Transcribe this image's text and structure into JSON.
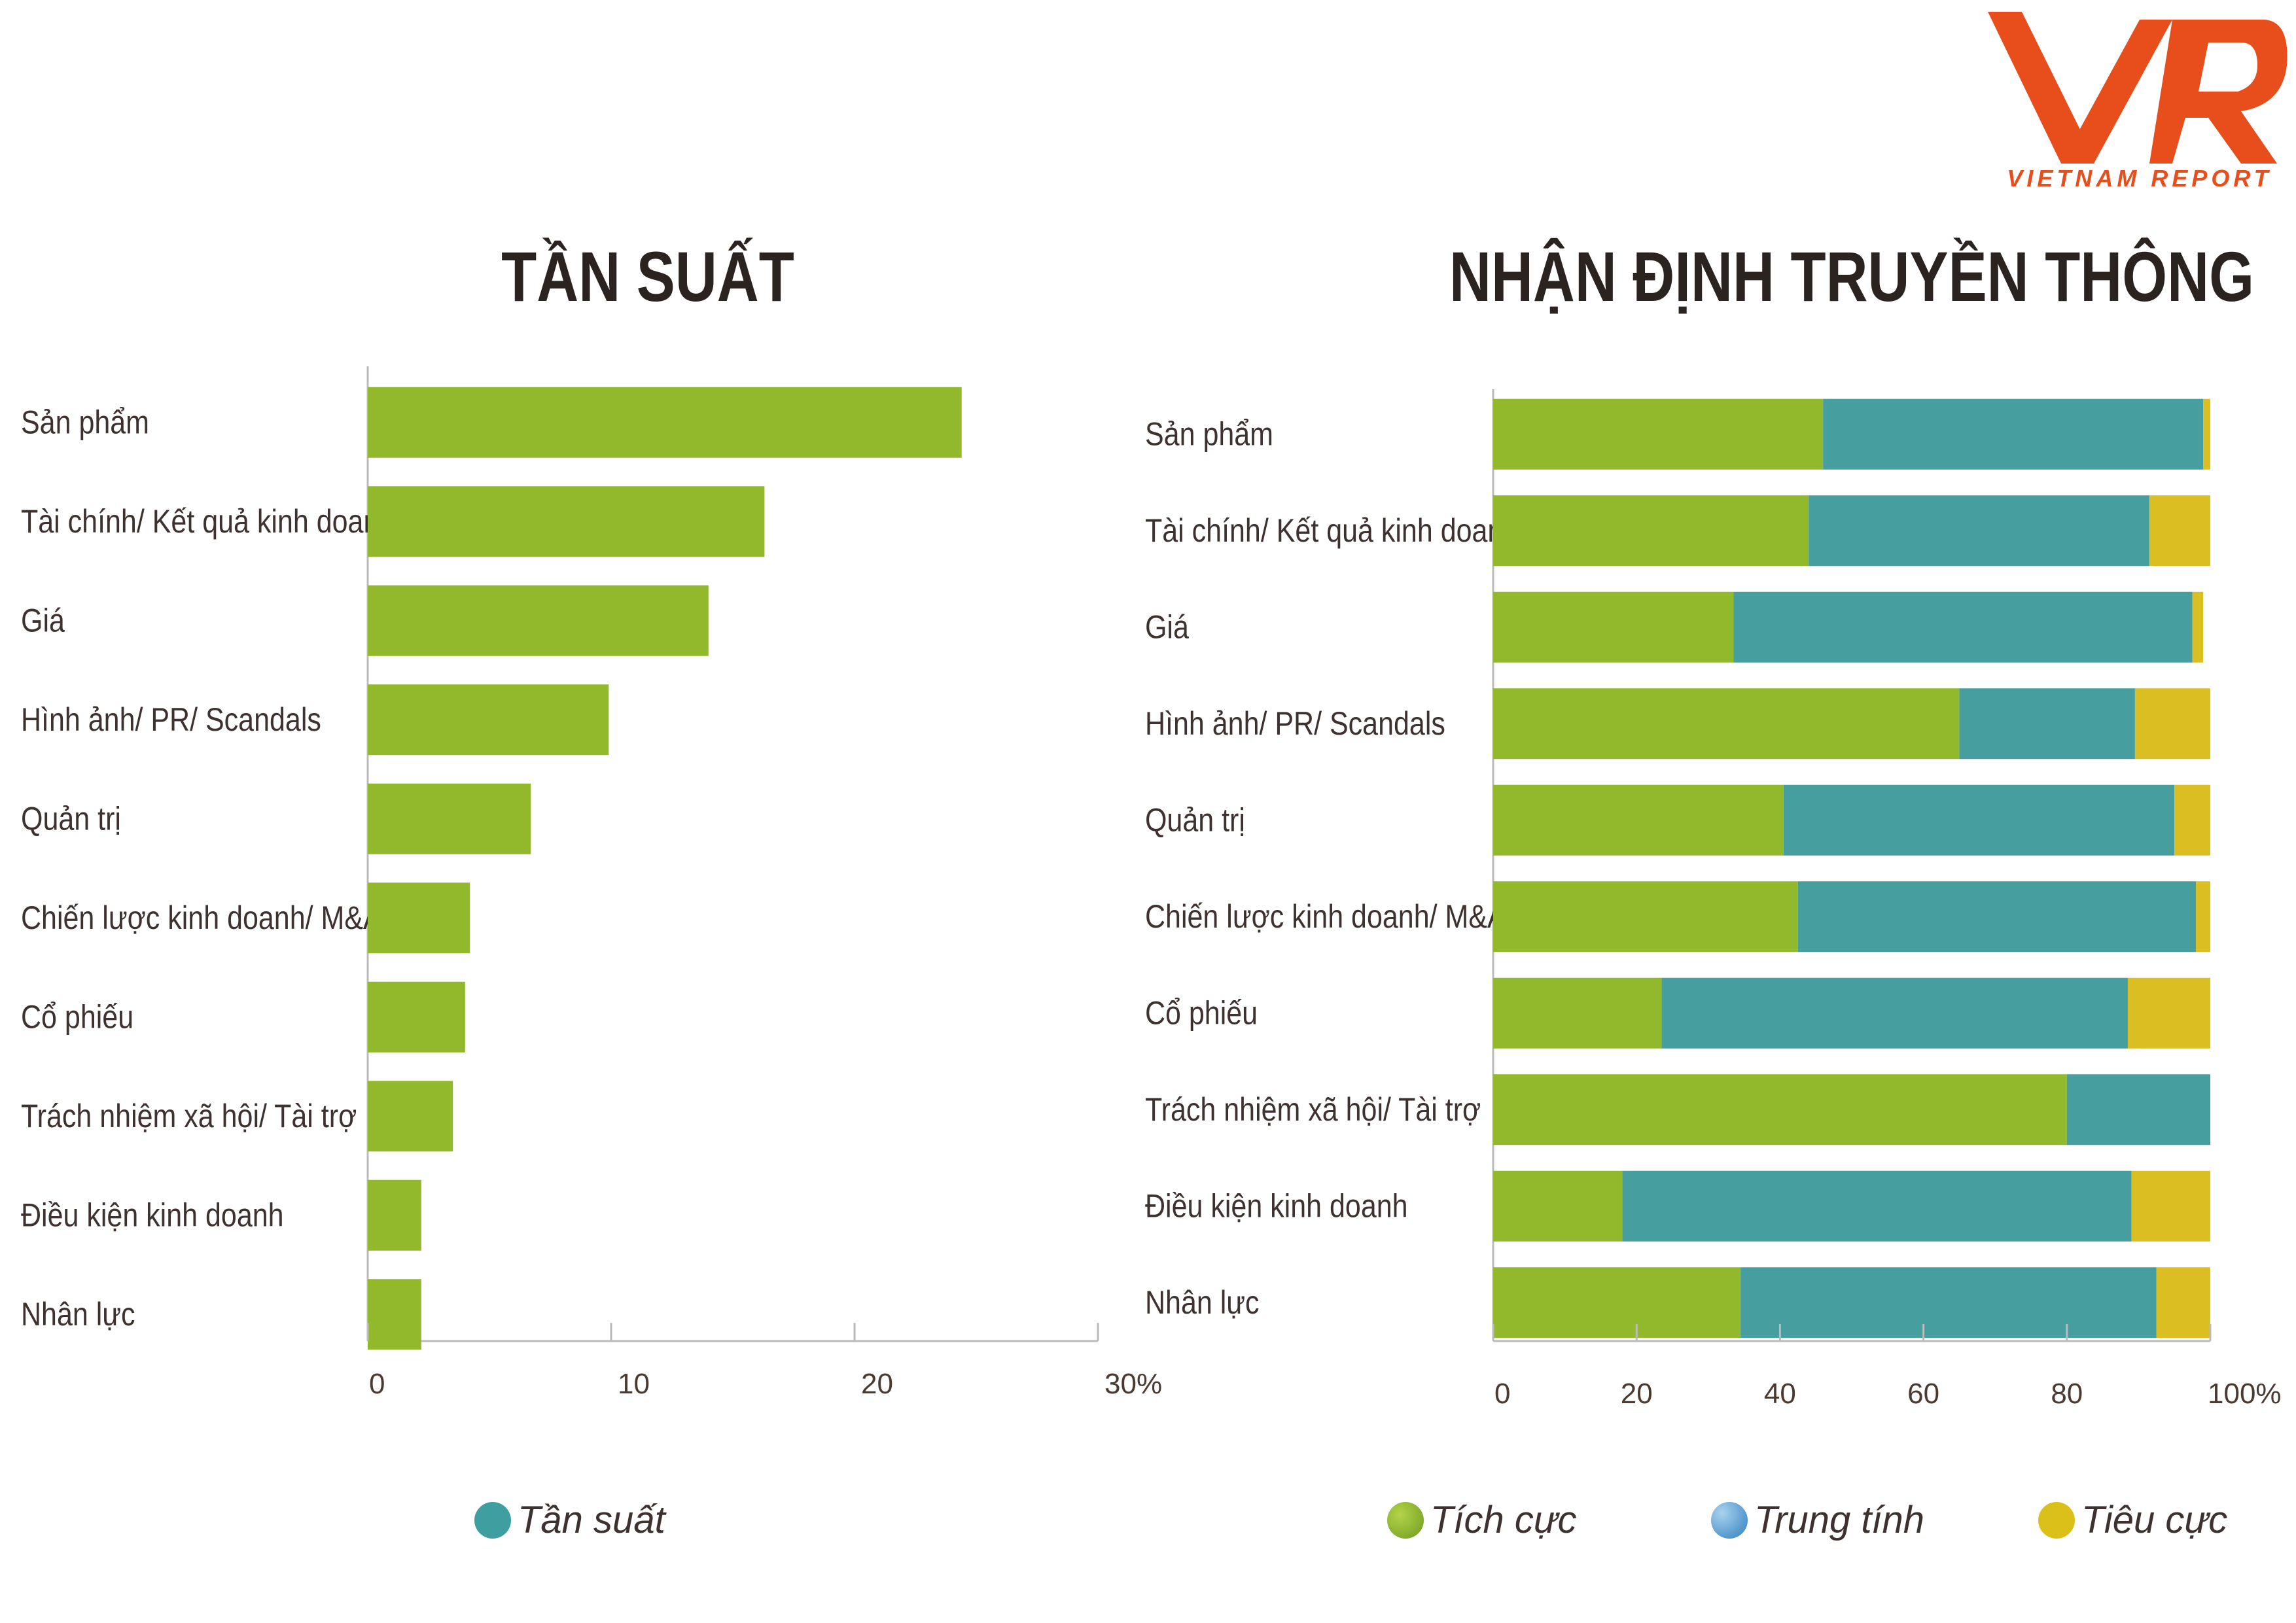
{
  "logo": {
    "wordmark": "VNR",
    "text": "VIETNAM REPORT",
    "color": "#e84e1b"
  },
  "titles": {
    "left": "TẦN SUẤT",
    "right": "NHẬN ĐỊNH TRUYỀN THÔNG"
  },
  "colors": {
    "positive": "#92b82b",
    "neutral": "#479e9f",
    "negative": "#dbbe22",
    "frequency": "#92b82b",
    "legend_frequency": "#3f9ea0"
  },
  "legend": {
    "left": [
      {
        "label": "Tần suất",
        "icon": "teal-circle"
      }
    ],
    "right": [
      {
        "label": "Tích cực",
        "icon": "green-circle"
      },
      {
        "label": "Trung tính",
        "icon": "blue-circle"
      },
      {
        "label": "Tiêu cực",
        "icon": "yellow-circle"
      }
    ]
  },
  "chart_data": [
    {
      "type": "bar",
      "orientation": "horizontal",
      "title": "TẦN SUẤT",
      "categories": [
        "Sản phẩm",
        "Tài chính/ Kết quả kinh doanh",
        "Giá",
        "Hình ảnh/ PR/ Scandals",
        "Quản trị",
        "Chiến lược kinh doanh/ M&A",
        "Cổ phiếu",
        "Trách nhiệm xã hội/ Tài trợ",
        "Điều kiện kinh doanh",
        "Nhân lực"
      ],
      "series": [
        {
          "name": "Tần suất",
          "values": [
            24.4,
            16.3,
            14.0,
            9.9,
            6.7,
            4.2,
            4.0,
            3.5,
            2.2,
            2.2
          ]
        }
      ],
      "xlim": [
        0,
        30
      ],
      "xticks": [
        "0",
        "10",
        "20",
        "30%"
      ],
      "grid": false,
      "legend_position": "bottom"
    },
    {
      "type": "bar",
      "orientation": "horizontal",
      "stacked": true,
      "title": "NHẬN ĐỊNH TRUYỀN THÔNG",
      "categories": [
        "Sản phẩm",
        "Tài chính/ Kết quả kinh doanh",
        "Giá",
        "Hình ảnh/ PR/ Scandals",
        "Quản trị",
        "Chiến lược kinh doanh/ M&A",
        "Cổ phiếu",
        "Trách nhiệm xã hội/ Tài trợ",
        "Điều kiện kinh doanh",
        "Nhân lực"
      ],
      "series": [
        {
          "name": "Tích cực",
          "values": [
            46,
            44,
            33.5,
            65,
            40.5,
            42.5,
            23.5,
            80,
            18,
            34.5
          ]
        },
        {
          "name": "Trung tính",
          "values": [
            53,
            47.5,
            64,
            24.5,
            54.5,
            55.5,
            65,
            20,
            71,
            58
          ]
        },
        {
          "name": "Tiêu cực",
          "values": [
            1,
            8.5,
            1.5,
            10.5,
            5,
            2,
            11.5,
            0,
            11,
            7.5
          ]
        }
      ],
      "xlim": [
        0,
        100
      ],
      "xticks": [
        "0",
        "20",
        "40",
        "60",
        "80",
        "100%"
      ],
      "grid": false,
      "legend_position": "bottom"
    }
  ]
}
